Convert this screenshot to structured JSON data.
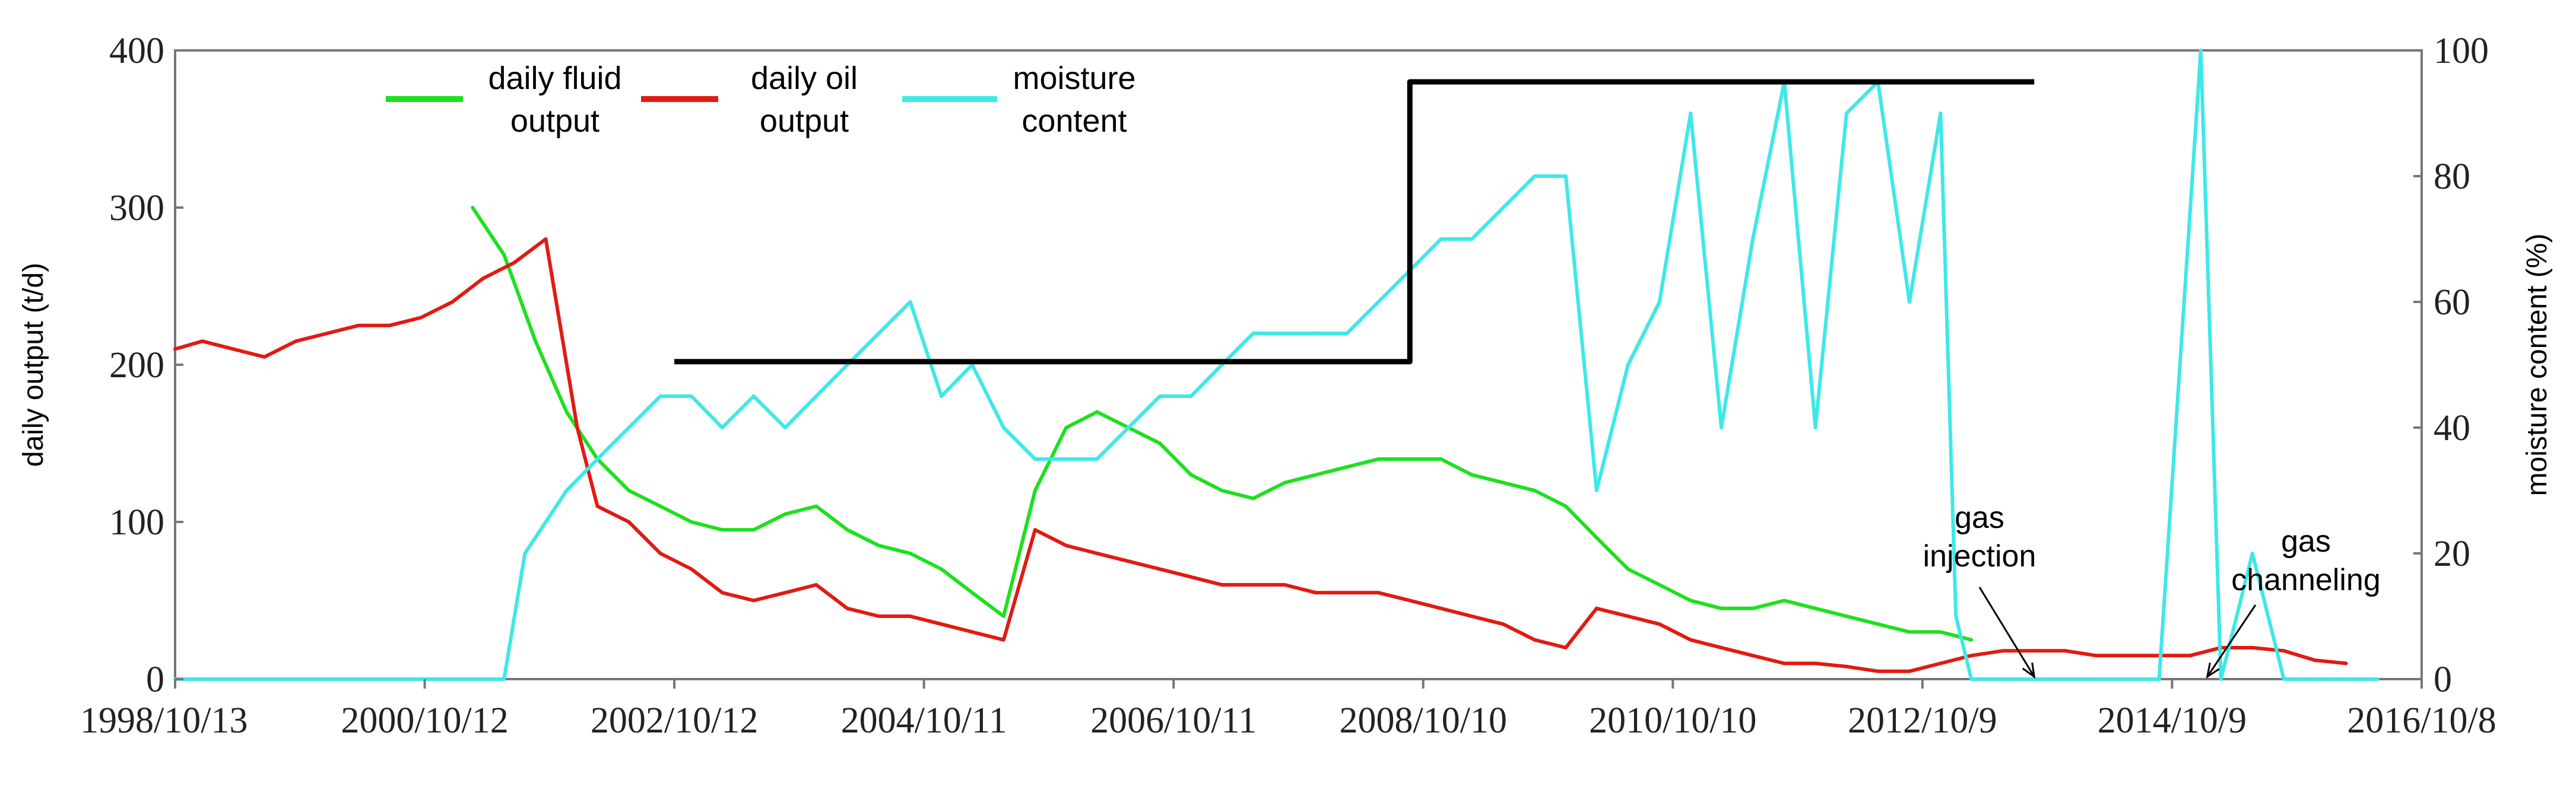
{
  "chart_data": {
    "type": "line",
    "title": "",
    "x_axis": {
      "tick_labels": [
        "1998/10/13",
        "2000/10/12",
        "2002/10/12",
        "2004/10/11",
        "2006/10/11",
        "2008/10/10",
        "2010/10/10",
        "2012/10/9",
        "2014/10/9",
        "2016/10/8"
      ],
      "range": [
        "1998/10/13",
        "2016/10/8"
      ]
    },
    "y_left": {
      "label": "daily output  (t/d)",
      "ylim": [
        0,
        400
      ],
      "ticks": [
        "0",
        "100",
        "200",
        "300",
        "400"
      ]
    },
    "y_right": {
      "label": "moisture content  (%)",
      "ylim": [
        0,
        100
      ],
      "ticks": [
        "0",
        "20",
        "40",
        "60",
        "80",
        "100"
      ]
    },
    "grid": false,
    "legend_placement": "top-left",
    "series": [
      {
        "name": "daily fluid output",
        "legend_lines": [
          "daily fluid",
          "output"
        ],
        "axis": "left",
        "color": "#1ee01e",
        "points": [
          [
            "2001/03/01",
            300
          ],
          [
            "2001/06/01",
            270
          ],
          [
            "2001/09/01",
            215
          ],
          [
            "2001/12/01",
            170
          ],
          [
            "2002/03/01",
            140
          ],
          [
            "2002/06/01",
            120
          ],
          [
            "2002/09/01",
            110
          ],
          [
            "2002/12/01",
            100
          ],
          [
            "2003/03/01",
            95
          ],
          [
            "2003/06/01",
            95
          ],
          [
            "2003/09/01",
            105
          ],
          [
            "2003/12/01",
            110
          ],
          [
            "2004/03/01",
            95
          ],
          [
            "2004/06/01",
            85
          ],
          [
            "2004/09/01",
            80
          ],
          [
            "2004/12/01",
            70
          ],
          [
            "2005/03/01",
            55
          ],
          [
            "2005/06/01",
            40
          ],
          [
            "2005/09/01",
            120
          ],
          [
            "2005/12/01",
            160
          ],
          [
            "2006/03/01",
            170
          ],
          [
            "2006/06/01",
            160
          ],
          [
            "2006/09/01",
            150
          ],
          [
            "2006/12/01",
            130
          ],
          [
            "2007/03/01",
            120
          ],
          [
            "2007/06/01",
            115
          ],
          [
            "2007/09/01",
            125
          ],
          [
            "2007/12/01",
            130
          ],
          [
            "2008/03/01",
            135
          ],
          [
            "2008/06/01",
            140
          ],
          [
            "2008/09/01",
            140
          ],
          [
            "2008/12/01",
            140
          ],
          [
            "2009/03/01",
            130
          ],
          [
            "2009/06/01",
            125
          ],
          [
            "2009/09/01",
            120
          ],
          [
            "2009/12/01",
            110
          ],
          [
            "2010/03/01",
            90
          ],
          [
            "2010/06/01",
            70
          ],
          [
            "2010/09/01",
            60
          ],
          [
            "2010/12/01",
            50
          ],
          [
            "2011/03/01",
            45
          ],
          [
            "2011/06/01",
            45
          ],
          [
            "2011/09/01",
            50
          ],
          [
            "2011/12/01",
            45
          ],
          [
            "2012/03/01",
            40
          ],
          [
            "2012/06/01",
            35
          ],
          [
            "2012/09/01",
            30
          ],
          [
            "2012/12/01",
            30
          ],
          [
            "2013/03/01",
            25
          ]
        ]
      },
      {
        "name": "daily oil output",
        "legend_lines": [
          "daily oil",
          "output"
        ],
        "axis": "left",
        "color": "#e11b12",
        "points": [
          [
            "1998/10/13",
            210
          ],
          [
            "1999/01/01",
            215
          ],
          [
            "1999/04/01",
            210
          ],
          [
            "1999/07/01",
            205
          ],
          [
            "1999/10/01",
            215
          ],
          [
            "2000/01/01",
            220
          ],
          [
            "2000/04/01",
            225
          ],
          [
            "2000/07/01",
            225
          ],
          [
            "2000/10/01",
            230
          ],
          [
            "2001/01/01",
            240
          ],
          [
            "2001/04/01",
            255
          ],
          [
            "2001/07/01",
            265
          ],
          [
            "2001/10/01",
            280
          ],
          [
            "2002/01/01",
            160
          ],
          [
            "2002/03/01",
            110
          ],
          [
            "2002/06/01",
            100
          ],
          [
            "2002/09/01",
            80
          ],
          [
            "2002/12/01",
            70
          ],
          [
            "2003/03/01",
            55
          ],
          [
            "2003/06/01",
            50
          ],
          [
            "2003/09/01",
            55
          ],
          [
            "2003/12/01",
            60
          ],
          [
            "2004/03/01",
            45
          ],
          [
            "2004/06/01",
            40
          ],
          [
            "2004/09/01",
            40
          ],
          [
            "2004/12/01",
            35
          ],
          [
            "2005/03/01",
            30
          ],
          [
            "2005/06/01",
            25
          ],
          [
            "2005/09/01",
            95
          ],
          [
            "2005/12/01",
            85
          ],
          [
            "2006/03/01",
            80
          ],
          [
            "2006/06/01",
            75
          ],
          [
            "2006/09/01",
            70
          ],
          [
            "2006/12/01",
            65
          ],
          [
            "2007/03/01",
            60
          ],
          [
            "2007/06/01",
            60
          ],
          [
            "2007/09/01",
            60
          ],
          [
            "2007/12/01",
            55
          ],
          [
            "2008/03/01",
            55
          ],
          [
            "2008/06/01",
            55
          ],
          [
            "2008/09/01",
            50
          ],
          [
            "2008/12/01",
            45
          ],
          [
            "2009/03/01",
            40
          ],
          [
            "2009/06/01",
            35
          ],
          [
            "2009/09/01",
            25
          ],
          [
            "2009/12/01",
            20
          ],
          [
            "2010/03/01",
            45
          ],
          [
            "2010/06/01",
            40
          ],
          [
            "2010/09/01",
            35
          ],
          [
            "2010/12/01",
            25
          ],
          [
            "2011/03/01",
            20
          ],
          [
            "2011/06/01",
            15
          ],
          [
            "2011/09/01",
            10
          ],
          [
            "2011/12/01",
            10
          ],
          [
            "2012/03/01",
            8
          ],
          [
            "2012/06/01",
            5
          ],
          [
            "2012/09/01",
            5
          ],
          [
            "2012/12/01",
            10
          ],
          [
            "2013/03/01",
            15
          ],
          [
            "2013/06/01",
            18
          ],
          [
            "2013/09/01",
            18
          ],
          [
            "2013/12/01",
            18
          ],
          [
            "2014/03/01",
            15
          ],
          [
            "2014/06/01",
            15
          ],
          [
            "2014/09/01",
            15
          ],
          [
            "2014/12/01",
            15
          ],
          [
            "2015/03/01",
            20
          ],
          [
            "2015/06/01",
            20
          ],
          [
            "2015/09/01",
            18
          ],
          [
            "2015/12/01",
            12
          ],
          [
            "2016/03/01",
            10
          ]
        ]
      },
      {
        "name": "moisture content",
        "legend_lines": [
          "moisture",
          "content"
        ],
        "axis": "right",
        "color": "#3ee8e8",
        "points": [
          [
            "1998/10/13",
            0
          ],
          [
            "2000/01/01",
            0
          ],
          [
            "2001/06/01",
            0
          ],
          [
            "2001/08/01",
            20
          ],
          [
            "2001/12/01",
            30
          ],
          [
            "2002/03/01",
            35
          ],
          [
            "2002/06/01",
            40
          ],
          [
            "2002/09/01",
            45
          ],
          [
            "2002/12/01",
            45
          ],
          [
            "2003/03/01",
            40
          ],
          [
            "2003/06/01",
            45
          ],
          [
            "2003/09/01",
            40
          ],
          [
            "2003/12/01",
            45
          ],
          [
            "2004/03/01",
            50
          ],
          [
            "2004/06/01",
            55
          ],
          [
            "2004/09/01",
            60
          ],
          [
            "2004/12/01",
            45
          ],
          [
            "2005/03/01",
            50
          ],
          [
            "2005/06/01",
            40
          ],
          [
            "2005/09/01",
            35
          ],
          [
            "2005/12/01",
            35
          ],
          [
            "2006/03/01",
            35
          ],
          [
            "2006/06/01",
            40
          ],
          [
            "2006/09/01",
            45
          ],
          [
            "2006/12/01",
            45
          ],
          [
            "2007/03/01",
            50
          ],
          [
            "2007/06/01",
            55
          ],
          [
            "2007/09/01",
            55
          ],
          [
            "2007/12/01",
            55
          ],
          [
            "2008/03/01",
            55
          ],
          [
            "2008/06/01",
            60
          ],
          [
            "2008/09/01",
            65
          ],
          [
            "2008/12/01",
            70
          ],
          [
            "2009/03/01",
            70
          ],
          [
            "2009/06/01",
            75
          ],
          [
            "2009/09/01",
            80
          ],
          [
            "2009/12/01",
            80
          ],
          [
            "2010/03/01",
            30
          ],
          [
            "2010/06/01",
            50
          ],
          [
            "2010/09/01",
            60
          ],
          [
            "2010/12/01",
            90
          ],
          [
            "2011/03/01",
            40
          ],
          [
            "2011/06/01",
            70
          ],
          [
            "2011/09/01",
            95
          ],
          [
            "2011/12/01",
            40
          ],
          [
            "2012/03/01",
            90
          ],
          [
            "2012/06/01",
            95
          ],
          [
            "2012/09/01",
            60
          ],
          [
            "2012/12/01",
            90
          ],
          [
            "2013/01/15",
            10
          ],
          [
            "2013/03/01",
            0
          ],
          [
            "2014/03/01",
            0
          ],
          [
            "2014/09/01",
            0
          ],
          [
            "2015/01/01",
            100
          ],
          [
            "2015/03/01",
            0
          ],
          [
            "2015/06/01",
            20
          ],
          [
            "2015/09/01",
            0
          ],
          [
            "2016/06/01",
            0
          ]
        ]
      },
      {
        "name": "",
        "axis": "right",
        "color": "#000000",
        "step": true,
        "points": [
          [
            "2002/10/12",
            50.5
          ],
          [
            "2008/09/01",
            50.5
          ],
          [
            "2008/09/01",
            95
          ],
          [
            "2013/09/01",
            95
          ]
        ]
      }
    ],
    "annotations": [
      {
        "lines": [
          "gas",
          "injection"
        ],
        "date": "2013/09/01",
        "value": 0
      },
      {
        "lines": [
          "gas",
          "channeling"
        ],
        "date": "2015/01/20",
        "value": 0
      }
    ]
  }
}
